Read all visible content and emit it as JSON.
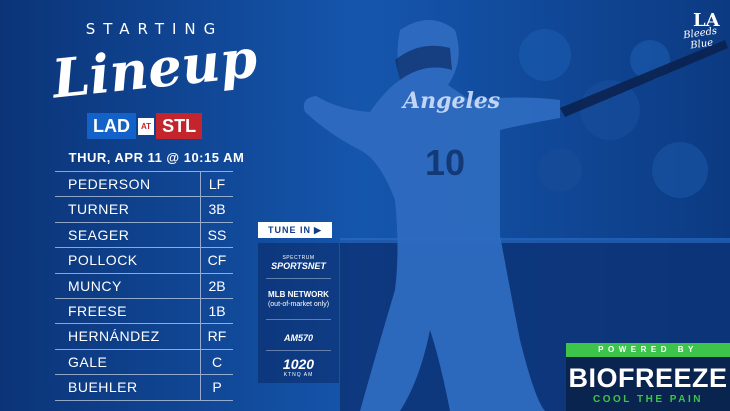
{
  "header": {
    "starting": "STARTING",
    "lineup": "Lineup"
  },
  "matchup": {
    "home": "LAD",
    "at": "AT",
    "away": "STL"
  },
  "game_time": "THUR, APR 11 @ 10:15 AM",
  "roster": [
    {
      "name": "PEDERSON",
      "pos": "LF"
    },
    {
      "name": "TURNER",
      "pos": "3B"
    },
    {
      "name": "SEAGER",
      "pos": "SS"
    },
    {
      "name": "POLLOCK",
      "pos": "CF"
    },
    {
      "name": "MUNCY",
      "pos": "2B"
    },
    {
      "name": "FREESE",
      "pos": "1B"
    },
    {
      "name": "HERNÁNDEZ",
      "pos": "RF"
    },
    {
      "name": "GALE",
      "pos": "C"
    },
    {
      "name": "BUEHLER",
      "pos": "P"
    }
  ],
  "tune_in": {
    "label": "TUNE IN"
  },
  "broadcasters": {
    "spectrum_top": "SPECTRUM",
    "sportsnet": "SPORTSNET",
    "mlb_network": "MLB NETWORK",
    "mlb_note": "(out-of-market only)",
    "am570": "AM570",
    "k1020": "1020",
    "k1020_sub": "KTNQ AM"
  },
  "brand": {
    "logo": "LA",
    "tagline": "Bleeds Blue"
  },
  "player_jersey": {
    "team": "Angeles",
    "number": "10"
  },
  "sponsor": {
    "powered_by": "POWERED BY",
    "name": "BIOFREEZE",
    "tagline": "COOL THE PAIN"
  },
  "colors": {
    "dodger_blue": "#1262c9",
    "cardinal_red": "#c4252c",
    "biofreeze_green": "#3cc54a",
    "navy": "#0a2450"
  }
}
